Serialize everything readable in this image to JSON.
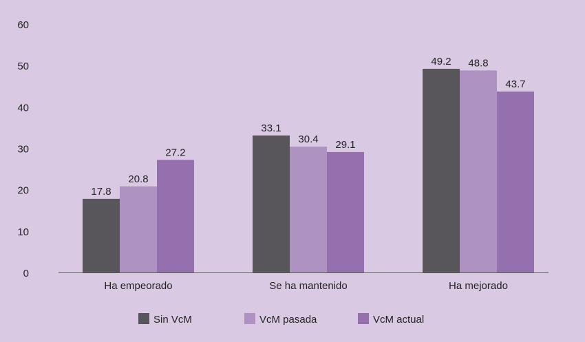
{
  "chart_data": {
    "type": "bar",
    "categories": [
      "Ha empeorado",
      "Se ha mantenido",
      "Ha mejorado"
    ],
    "series": [
      {
        "name": "Sin VcM",
        "values": [
          17.8,
          33.1,
          49.2
        ],
        "color": "#58565b"
      },
      {
        "name": "VcM pasada",
        "values": [
          20.8,
          30.4,
          48.8
        ],
        "color": "#ad92c2"
      },
      {
        "name": "VcM actual",
        "values": [
          27.2,
          29.1,
          43.7
        ],
        "color": "#9470af"
      }
    ],
    "y_ticks": [
      "0",
      "10",
      "20",
      "30",
      "40",
      "50",
      "60"
    ],
    "ylim": [
      0,
      60
    ],
    "grid": false,
    "legend_position": "bottom"
  },
  "colors": {
    "background": "#dac9e3",
    "axis": "#555555",
    "text": "#222222"
  }
}
